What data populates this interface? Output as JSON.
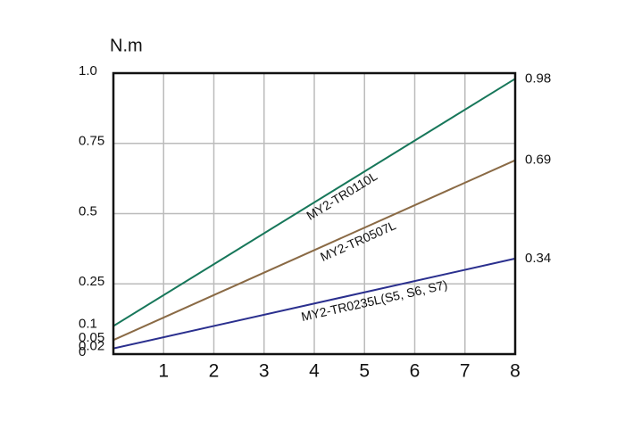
{
  "chart_data": {
    "type": "line",
    "ylabel": "N.m",
    "xlim": [
      0,
      8
    ],
    "xticks": [
      1,
      2,
      3,
      4,
      5,
      6,
      7,
      8
    ],
    "ylim": [
      0,
      1
    ],
    "yticks": [
      0,
      0.02,
      0.05,
      0.1,
      0.25,
      0.5,
      0.75,
      {
        "value": 1,
        "label": "1.0"
      }
    ],
    "ygrid": [
      0.25,
      0.5,
      0.75
    ],
    "grid": true,
    "series": [
      {
        "name": "MY2-TR0110L",
        "color": "#17775a",
        "x": [
          0,
          8
        ],
        "values": [
          0.1,
          0.98
        ]
      },
      {
        "name": "MY2-TR0507L",
        "color": "#8a6a45",
        "x": [
          0,
          8
        ],
        "values": [
          0.05,
          0.69
        ]
      },
      {
        "name": "MY2-TR0235L(S5, S6, S7)",
        "color": "#2a2f8e",
        "x": [
          0,
          8
        ],
        "values": [
          0.02,
          0.34
        ]
      }
    ]
  }
}
